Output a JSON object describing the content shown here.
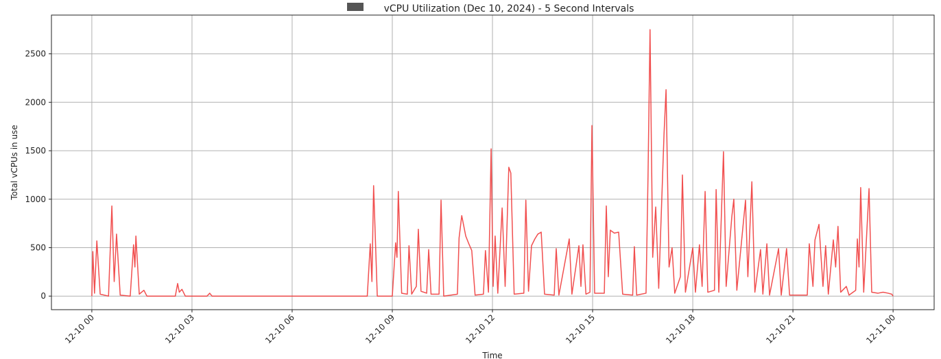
{
  "chart_data": {
    "type": "line",
    "title": "vCPU Utilization (Dec 10, 2024) - 5 Second Intervals",
    "xlabel": "Time",
    "ylabel": "Total vCPUs in use",
    "xlim": [
      -1.21,
      25.23
    ],
    "ylim": [
      -140,
      2900
    ],
    "xticks": [
      {
        "value": 0,
        "label": "12-10 00"
      },
      {
        "value": 3,
        "label": "12-10 03"
      },
      {
        "value": 6,
        "label": "12-10 06"
      },
      {
        "value": 9,
        "label": "12-10 09"
      },
      {
        "value": 12,
        "label": "12-10 12"
      },
      {
        "value": 15,
        "label": "12-10 15"
      },
      {
        "value": 18,
        "label": "12-10 18"
      },
      {
        "value": 21,
        "label": "12-10 21"
      },
      {
        "value": 24,
        "label": "12-11 00"
      }
    ],
    "yticks": [
      0,
      500,
      1000,
      1500,
      2000,
      2500
    ],
    "grid": true,
    "series": [
      {
        "color": "#f03c3c",
        "x": [
          0,
          0.03,
          0.08,
          0.15,
          0.25,
          0.5,
          0.6,
          0.67,
          0.74,
          0.85,
          1.15,
          1.25,
          1.29,
          1.32,
          1.42,
          1.56,
          1.65,
          2.5,
          2.57,
          2.62,
          2.7,
          2.8,
          3.45,
          3.53,
          3.6,
          8.25,
          8.34,
          8.39,
          8.44,
          8.55,
          9.0,
          9.1,
          9.14,
          9.18,
          9.28,
          9.45,
          9.5,
          9.58,
          9.72,
          9.78,
          9.86,
          10.03,
          10.09,
          10.16,
          10.4,
          10.46,
          10.54,
          10.95,
          11.0,
          11.08,
          11.2,
          11.28,
          11.38,
          11.48,
          11.73,
          11.79,
          11.88,
          11.96,
          12.02,
          12.08,
          12.16,
          12.29,
          12.38,
          12.49,
          12.55,
          12.65,
          12.94,
          13.0,
          13.08,
          13.17,
          13.27,
          13.36,
          13.46,
          13.56,
          13.85,
          13.91,
          13.99,
          14.3,
          14.38,
          14.59,
          14.65,
          14.71,
          14.8,
          14.92,
          14.98,
          15.06,
          15.35,
          15.41,
          15.47,
          15.53,
          15.65,
          15.78,
          15.9,
          16.2,
          16.25,
          16.32,
          16.6,
          16.66,
          16.72,
          16.8,
          16.89,
          16.98,
          17.14,
          17.2,
          17.29,
          17.38,
          17.46,
          17.63,
          17.69,
          17.78,
          18.0,
          18.08,
          18.2,
          18.28,
          18.37,
          18.45,
          18.65,
          18.7,
          18.78,
          18.92,
          19.0,
          19.17,
          19.23,
          19.32,
          19.58,
          19.65,
          19.77,
          19.86,
          20.03,
          20.1,
          20.22,
          20.3,
          20.57,
          20.65,
          20.81,
          20.9,
          21.43,
          21.49,
          21.6,
          21.66,
          21.78,
          21.9,
          21.98,
          22.06,
          22.21,
          22.28,
          22.35,
          22.43,
          22.6,
          22.68,
          22.88,
          22.93,
          22.98,
          23.03,
          23.12,
          23.28,
          23.36,
          23.55,
          23.7,
          23.85,
          23.96,
          24.0
        ],
        "values": [
          0,
          460,
          30,
          570,
          20,
          0,
          930,
          150,
          640,
          10,
          0,
          530,
          300,
          620,
          20,
          60,
          0,
          0,
          130,
          40,
          70,
          0,
          0,
          30,
          0,
          0,
          540,
          150,
          1140,
          0,
          0,
          550,
          400,
          1080,
          30,
          20,
          520,
          20,
          100,
          690,
          50,
          30,
          480,
          20,
          20,
          990,
          0,
          20,
          600,
          830,
          620,
          550,
          470,
          10,
          20,
          470,
          40,
          1520,
          100,
          620,
          30,
          910,
          100,
          1330,
          1270,
          20,
          30,
          990,
          50,
          520,
          590,
          640,
          660,
          20,
          10,
          490,
          10,
          590,
          20,
          520,
          100,
          530,
          20,
          40,
          1760,
          30,
          30,
          930,
          200,
          680,
          650,
          660,
          20,
          10,
          510,
          10,
          30,
          1240,
          2750,
          400,
          920,
          80,
          1680,
          2130,
          300,
          500,
          30,
          200,
          1250,
          40,
          500,
          40,
          530,
          100,
          1080,
          40,
          60,
          1100,
          40,
          1490,
          100,
          820,
          1000,
          60,
          990,
          200,
          1180,
          40,
          480,
          20,
          540,
          10,
          490,
          10,
          490,
          10,
          10,
          540,
          100,
          580,
          740,
          100,
          520,
          20,
          580,
          300,
          720,
          40,
          100,
          10,
          60,
          590,
          300,
          1120,
          40,
          1110,
          40,
          30,
          40,
          30,
          20,
          0
        ]
      }
    ]
  }
}
